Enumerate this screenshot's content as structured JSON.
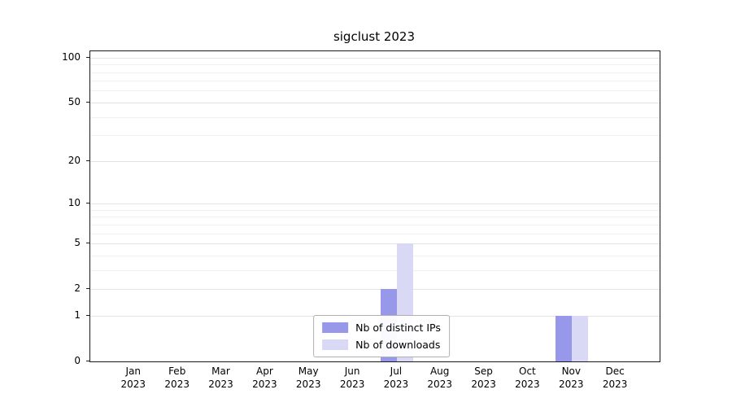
{
  "chart_data": {
    "type": "bar",
    "title": "sigclust 2023",
    "scale": "log1p",
    "grid": true,
    "legend_position": "lower center",
    "categories": [
      "Jan",
      "Feb",
      "Mar",
      "Apr",
      "May",
      "Jun",
      "Jul",
      "Aug",
      "Sep",
      "Oct",
      "Nov",
      "Dec"
    ],
    "category_year": "2023",
    "series": [
      {
        "name": "Nb of distinct IPs",
        "color": "#9898ea",
        "values": [
          0,
          0,
          0,
          0,
          0,
          0,
          2,
          0,
          0,
          0,
          1,
          0
        ]
      },
      {
        "name": "Nb of downloads",
        "color": "#d9d9f6",
        "values": [
          0,
          0,
          0,
          0,
          0,
          0,
          5,
          0,
          0,
          0,
          1,
          0
        ]
      }
    ],
    "yticks": [
      0,
      1,
      2,
      5,
      10,
      20,
      50,
      100
    ],
    "grid_values": [
      1,
      2,
      3,
      4,
      5,
      6,
      7,
      8,
      9,
      10,
      20,
      30,
      40,
      50,
      60,
      70,
      80,
      90,
      100
    ],
    "ylim": [
      0,
      110
    ]
  }
}
